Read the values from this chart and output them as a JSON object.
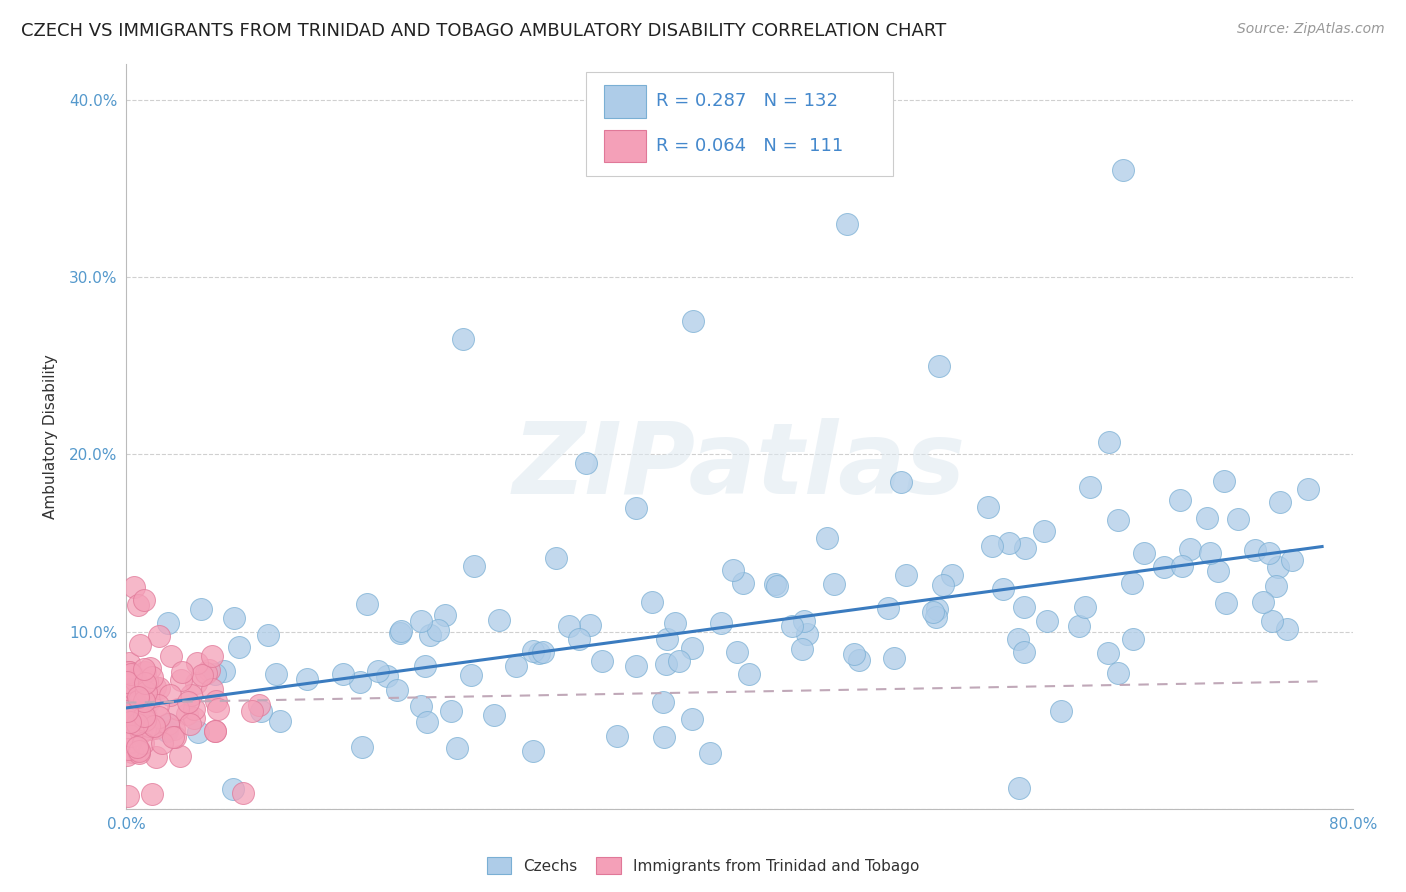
{
  "title": "CZECH VS IMMIGRANTS FROM TRINIDAD AND TOBAGO AMBULATORY DISABILITY CORRELATION CHART",
  "source": "Source: ZipAtlas.com",
  "ylabel": "Ambulatory Disability",
  "xlim": [
    0.0,
    0.8
  ],
  "ylim": [
    0.0,
    0.42
  ],
  "x_ticks": [
    0.0,
    0.1,
    0.2,
    0.3,
    0.4,
    0.5,
    0.6,
    0.7,
    0.8
  ],
  "x_tick_labels": [
    "0.0%",
    "",
    "",
    "",
    "",
    "",
    "",
    "",
    "80.0%"
  ],
  "y_ticks": [
    0.0,
    0.1,
    0.2,
    0.3,
    0.4
  ],
  "y_tick_labels": [
    "",
    "10.0%",
    "20.0%",
    "30.0%",
    "40.0%"
  ],
  "czechs_color": "#aecce8",
  "czechs_edge": "#7aafd4",
  "trinidad_color": "#f4a0b8",
  "trinidad_edge": "#e07898",
  "trend_blue_color": "#3a7bbf",
  "trend_gray_color": "#c0a8b8",
  "grid_color": "#d0d0d0",
  "background": "#ffffff",
  "watermark": "ZIPatlas",
  "N_czech": 132,
  "N_trinidad": 111,
  "legend_label_czech": "Czechs",
  "legend_label_trin": "Immigrants from Trinidad and Tobago",
  "legend_R_czech": "0.287",
  "legend_N_czech": "132",
  "legend_R_trin": "0.064",
  "legend_N_trin": "111",
  "title_fontsize": 13,
  "source_fontsize": 10,
  "tick_fontsize": 11,
  "ylabel_fontsize": 11,
  "legend_fontsize": 13
}
